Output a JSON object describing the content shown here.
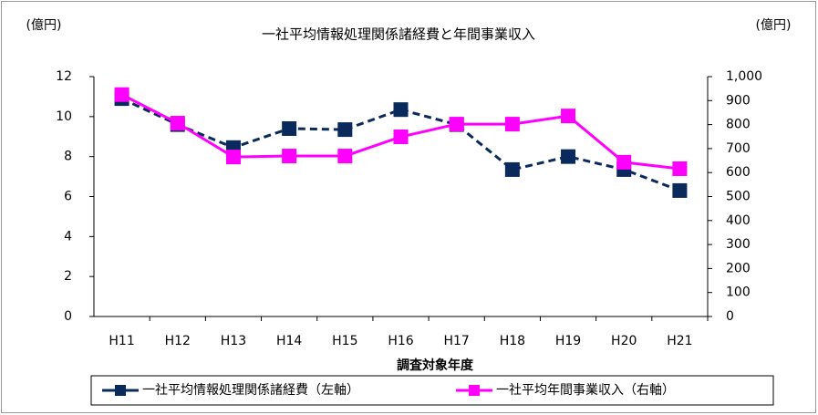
{
  "chart_data": {
    "type": "line",
    "title": "一社平均情報処理関係諸経費と年間事業収入",
    "ylabel": "(億円)",
    "y2label": "(億円)",
    "xlabel": "調査対象年度",
    "categories": [
      "H11",
      "H12",
      "H13",
      "H14",
      "H15",
      "H16",
      "H17",
      "H18",
      "H19",
      "H20",
      "H21"
    ],
    "series": [
      {
        "name": "一社平均情報処理関係諸経費（左軸）",
        "color": "#0b2a5c",
        "dashed": true,
        "axis": "y",
        "values": [
          10.9,
          9.6,
          8.45,
          9.4,
          9.35,
          10.35,
          9.6,
          7.35,
          8.0,
          7.35,
          6.3
        ]
      },
      {
        "name": "一社平均年間事業収入（右軸）",
        "color": "#ff00ff",
        "dashed": false,
        "axis": "y2",
        "values": [
          925,
          806,
          665,
          669,
          669,
          749,
          802,
          802,
          836,
          643,
          616
        ]
      }
    ],
    "ylim": [
      0,
      12
    ],
    "yticks": [
      0,
      2,
      4,
      6,
      8,
      10,
      12
    ],
    "y2lim": [
      0,
      1000
    ],
    "y2ticks": [
      0,
      100,
      200,
      300,
      400,
      500,
      600,
      700,
      800,
      900,
      {
        "value": 1000,
        "label": "1,000"
      }
    ],
    "grid": false,
    "legend": "bottom"
  }
}
